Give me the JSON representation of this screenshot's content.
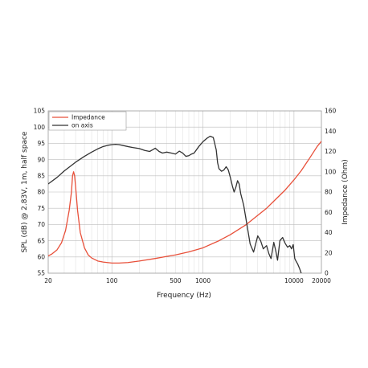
{
  "chart_data": {
    "type": "line",
    "xlabel": "Frequency (Hz)",
    "ylabel": "SPL (dB) @ 2.83V, 1m, half space",
    "y2label": "Impedance (Ohm)",
    "xscale": "log",
    "xlim": [
      20,
      20000
    ],
    "ylim": [
      55,
      105
    ],
    "y2lim": [
      0,
      160
    ],
    "grid": true,
    "legend_position": "top-left",
    "x_ticks": [
      "20",
      "100",
      "500",
      "1000",
      "10000",
      "20000"
    ],
    "y_ticks": [
      "55",
      "60",
      "65",
      "70",
      "75",
      "80",
      "85",
      "90",
      "95",
      "100",
      "105"
    ],
    "y2_ticks": [
      "0",
      "20",
      "40",
      "60",
      "80",
      "100",
      "120",
      "140",
      "160"
    ],
    "series": [
      {
        "name": "Impedance",
        "axis": "right",
        "color": "#e8503a",
        "x": [
          20,
          22,
          25,
          28,
          31,
          34,
          36,
          37,
          38,
          39,
          40,
          42,
          45,
          50,
          55,
          60,
          70,
          80,
          100,
          120,
          150,
          200,
          300,
          400,
          500,
          700,
          1000,
          1500,
          2000,
          3000,
          4000,
          5000,
          6000,
          8000,
          10000,
          12000,
          15000,
          18000,
          20000
        ],
        "values": [
          17,
          19,
          23,
          30,
          42,
          62,
          80,
          96,
          100,
          96,
          85,
          62,
          40,
          25,
          18,
          15,
          12,
          11,
          10,
          10,
          10.5,
          12,
          14.5,
          16.5,
          18,
          21,
          25,
          32,
          38,
          48,
          57,
          64,
          71,
          82,
          92,
          101,
          114,
          125,
          130
        ]
      },
      {
        "name": "on axis",
        "axis": "left",
        "color": "#333333",
        "x": [
          20,
          25,
          30,
          40,
          50,
          60,
          70,
          80,
          90,
          100,
          110,
          120,
          130,
          150,
          170,
          200,
          230,
          260,
          280,
          300,
          330,
          360,
          400,
          450,
          500,
          550,
          600,
          650,
          700,
          750,
          800,
          900,
          1000,
          1100,
          1200,
          1300,
          1400,
          1450,
          1500,
          1600,
          1700,
          1800,
          1900,
          2000,
          2100,
          2200,
          2300,
          2400,
          2500,
          2600,
          2800,
          3000,
          3300,
          3600,
          4000,
          4300,
          4600,
          5000,
          5300,
          5600,
          6000,
          6300,
          6600,
          7000,
          7500,
          8000,
          8500,
          9000,
          9400,
          9800,
          10200,
          10500,
          11000,
          11500,
          12000
        ],
        "values": [
          82.5,
          84.5,
          86.5,
          89.2,
          91,
          92.3,
          93.3,
          94,
          94.4,
          94.6,
          94.7,
          94.6,
          94.4,
          94,
          93.7,
          93.4,
          92.8,
          92.5,
          93,
          93.5,
          92.5,
          92,
          92.3,
          92,
          91.7,
          92.6,
          92,
          91,
          91.2,
          91.7,
          92,
          94,
          95.5,
          96.5,
          97.2,
          96.8,
          93,
          89,
          87.2,
          86.4,
          86.8,
          87.8,
          86.8,
          84.5,
          82,
          80,
          81.5,
          83.5,
          82.5,
          79.5,
          76,
          71,
          64,
          61.5,
          66.5,
          65,
          62.5,
          63.5,
          61,
          59.5,
          64.5,
          62,
          59,
          65,
          66,
          64.2,
          63,
          63.5,
          62.5,
          63.8,
          59.5,
          58.8,
          57.8,
          56.5,
          55
        ]
      }
    ]
  }
}
